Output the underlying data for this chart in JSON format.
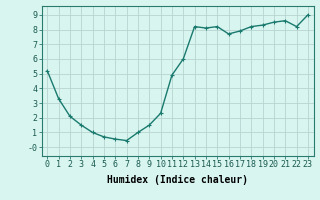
{
  "x": [
    0,
    1,
    2,
    3,
    4,
    5,
    6,
    7,
    8,
    9,
    10,
    11,
    12,
    13,
    14,
    15,
    16,
    17,
    18,
    19,
    20,
    21,
    22,
    23
  ],
  "y": [
    5.2,
    3.3,
    2.1,
    1.5,
    1.0,
    0.7,
    0.55,
    0.45,
    1.0,
    1.5,
    2.3,
    4.9,
    6.0,
    8.2,
    8.1,
    8.2,
    7.7,
    7.9,
    8.2,
    8.3,
    8.5,
    8.6,
    8.2,
    9.0
  ],
  "line_color": "#1a7a6e",
  "marker": "+",
  "marker_size": 3,
  "bg_color": "#d8f5f0",
  "grid_color": "#b8d4d0",
  "xlabel": "Humidex (Indice chaleur)",
  "xlim": [
    -0.5,
    23.5
  ],
  "ylim": [
    -0.6,
    9.6
  ],
  "yticks": [
    0,
    1,
    2,
    3,
    4,
    5,
    6,
    7,
    8,
    9
  ],
  "ytick_labels": [
    "-0",
    "1",
    "2",
    "3",
    "4",
    "5",
    "6",
    "7",
    "8",
    "9"
  ],
  "xticks": [
    0,
    1,
    2,
    3,
    4,
    5,
    6,
    7,
    8,
    9,
    10,
    11,
    12,
    13,
    14,
    15,
    16,
    17,
    18,
    19,
    20,
    21,
    22,
    23
  ],
  "xtick_labels": [
    "0",
    "1",
    "2",
    "3",
    "4",
    "5",
    "6",
    "7",
    "8",
    "9",
    "10",
    "11",
    "12",
    "13",
    "14",
    "15",
    "16",
    "17",
    "18",
    "19",
    "20",
    "21",
    "22",
    "23"
  ],
  "tick_fontsize": 6,
  "xlabel_fontsize": 7,
  "line_width": 1.0,
  "marker_edge_width": 0.8
}
